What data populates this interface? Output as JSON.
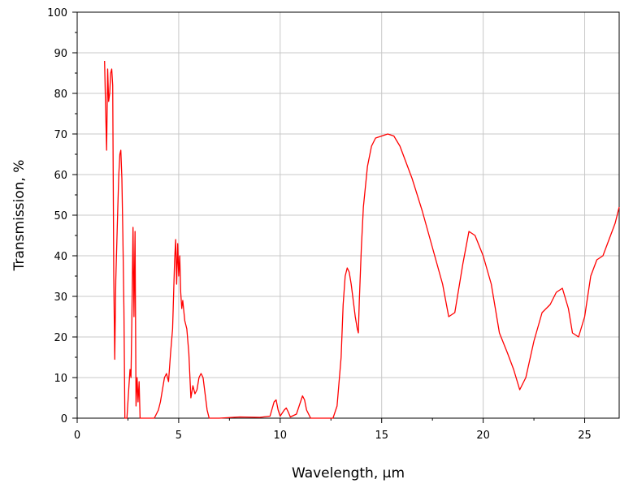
{
  "chart_data": {
    "type": "line",
    "title": "",
    "xlabel": "Wavelength, µm",
    "ylabel": "Transmission, %",
    "xlim": [
      0,
      26.7
    ],
    "ylim": [
      0,
      100
    ],
    "xticks": [
      0,
      5,
      10,
      15,
      20,
      25
    ],
    "yticks": [
      0,
      10,
      20,
      30,
      40,
      50,
      60,
      70,
      80,
      90,
      100
    ],
    "grid": true,
    "line_color": "#ff0000",
    "series": [
      {
        "name": "",
        "x": [
          1.35,
          1.4,
          1.45,
          1.5,
          1.55,
          1.6,
          1.65,
          1.7,
          1.75,
          1.8,
          1.85,
          1.9,
          2.0,
          2.05,
          2.1,
          2.15,
          2.2,
          2.25,
          2.3,
          2.35,
          2.4,
          2.45,
          2.55,
          2.6,
          2.65,
          2.7,
          2.75,
          2.8,
          2.85,
          2.9,
          2.95,
          3.0,
          3.05,
          3.1,
          3.2,
          3.3,
          3.5,
          3.8,
          4.0,
          4.1,
          4.2,
          4.3,
          4.4,
          4.5,
          4.6,
          4.7,
          4.8,
          4.85,
          4.9,
          4.95,
          5.0,
          5.05,
          5.1,
          5.15,
          5.2,
          5.3,
          5.4,
          5.5,
          5.6,
          5.7,
          5.8,
          5.9,
          6.0,
          6.1,
          6.2,
          6.3,
          6.4,
          6.5,
          6.6,
          6.7,
          7.0,
          8.0,
          9.0,
          9.5,
          9.7,
          9.8,
          9.9,
          10.0,
          10.2,
          10.3,
          10.4,
          10.5,
          10.8,
          11.0,
          11.1,
          11.2,
          11.3,
          11.5,
          12.0,
          12.6,
          12.8,
          13.0,
          13.1,
          13.2,
          13.3,
          13.4,
          13.5,
          13.6,
          13.7,
          13.8,
          13.85,
          13.9,
          14.0,
          14.1,
          14.3,
          14.5,
          14.7,
          15.0,
          15.3,
          15.6,
          15.9,
          16.2,
          16.5,
          17.0,
          17.5,
          18.0,
          18.3,
          18.6,
          19.0,
          19.3,
          19.6,
          20.0,
          20.4,
          20.8,
          21.2,
          21.5,
          21.8,
          22.1,
          22.5,
          22.9,
          23.3,
          23.6,
          23.9,
          24.2,
          24.4,
          24.7,
          25.0,
          25.3,
          25.6,
          25.9,
          26.2,
          26.5,
          26.7
        ],
        "y": [
          88,
          76,
          66,
          86,
          78,
          80,
          85,
          86,
          82,
          35,
          14.5,
          34,
          52,
          60,
          65,
          66,
          59,
          45,
          27,
          0,
          0,
          0,
          8,
          12,
          10,
          26,
          47,
          25,
          46,
          3,
          10,
          4,
          9,
          0,
          0,
          0,
          0,
          0,
          2,
          4,
          7,
          10,
          11,
          9,
          16,
          22,
          39,
          44,
          33,
          43,
          35,
          40,
          31,
          27,
          29,
          24,
          22,
          16,
          5,
          8,
          6,
          7,
          10,
          11,
          10,
          6,
          2,
          0,
          0,
          0,
          0,
          0.3,
          0.2,
          0.5,
          4,
          4.5,
          2,
          0.5,
          2,
          2.5,
          1.5,
          0.3,
          1,
          4,
          5.5,
          4.5,
          2,
          0,
          0,
          0,
          3,
          15,
          28,
          35,
          37,
          36,
          33,
          29,
          25,
          22,
          21,
          29,
          42,
          52,
          62,
          67,
          69,
          69.5,
          70,
          69.5,
          67,
          63,
          59,
          51,
          42,
          33,
          25,
          26,
          38,
          46,
          45,
          40,
          33,
          21,
          16,
          12,
          7,
          10,
          19,
          26,
          28,
          31,
          32,
          27,
          21,
          20,
          25,
          35,
          39,
          40,
          44,
          48,
          52
        ]
      }
    ]
  }
}
